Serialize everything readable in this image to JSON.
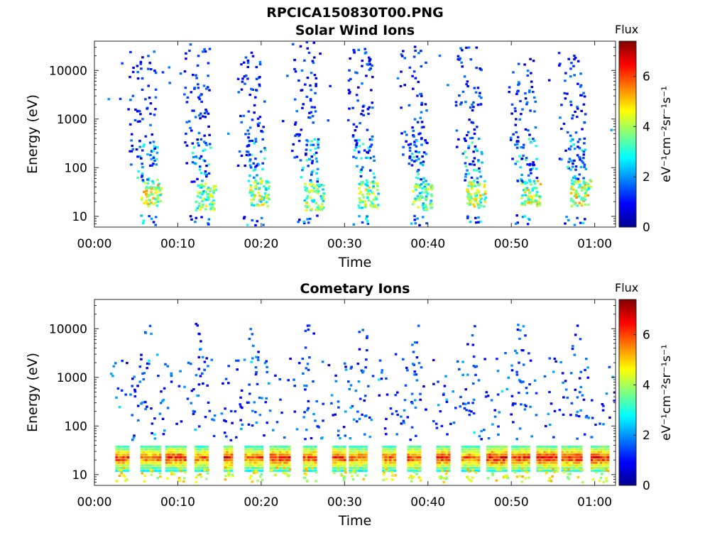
{
  "figure": {
    "title": "RPCICA150830T00.PNG"
  },
  "colors": {
    "colormap": [
      "#00008f",
      "#0000ff",
      "#0080ff",
      "#00ffff",
      "#80ff80",
      "#ffff00",
      "#ff8000",
      "#ff0000",
      "#800000"
    ]
  },
  "chart_data": [
    {
      "type": "heatmap",
      "title": "Solar Wind Ions",
      "xlabel": "Time",
      "ylabel": "Energy (eV)",
      "x_ticks": [
        "00:00",
        "00:10",
        "00:20",
        "00:30",
        "00:40",
        "00:50",
        "01:00"
      ],
      "x_range_minutes": [
        0,
        62.5
      ],
      "y_scale": "log",
      "y_ticks": [
        "10",
        "100",
        "1000",
        "10000"
      ],
      "y_range_eV": [
        6,
        40000
      ],
      "colorbar": {
        "label": "Flux",
        "units": "eV⁻¹cm⁻²sr⁻¹s⁻¹",
        "ticks": [
          "0",
          "2",
          "4",
          "6"
        ],
        "range": [
          0,
          7.4
        ]
      },
      "bursts": [
        {
          "t": 6.0,
          "core_eV": 30,
          "peak_flux": 5.5,
          "high_eV": 30000
        },
        {
          "t": 12.5,
          "core_eV": 25,
          "peak_flux": 4.8,
          "high_eV": 35000
        },
        {
          "t": 19.0,
          "core_eV": 30,
          "peak_flux": 5.2,
          "high_eV": 25000
        },
        {
          "t": 25.5,
          "core_eV": 25,
          "peak_flux": 5.0,
          "high_eV": 40000
        },
        {
          "t": 32.0,
          "core_eV": 28,
          "peak_flux": 4.9,
          "high_eV": 30000
        },
        {
          "t": 38.5,
          "core_eV": 25,
          "peak_flux": 4.7,
          "high_eV": 35000
        },
        {
          "t": 45.0,
          "core_eV": 28,
          "peak_flux": 5.3,
          "high_eV": 30000
        },
        {
          "t": 51.5,
          "core_eV": 30,
          "peak_flux": 5.4,
          "high_eV": 25000
        },
        {
          "t": 57.5,
          "core_eV": 30,
          "peak_flux": 5.6,
          "high_eV": 30000
        }
      ]
    },
    {
      "type": "heatmap",
      "title": "Cometary Ions",
      "xlabel": "Time",
      "ylabel": "Energy (eV)",
      "x_ticks": [
        "00:00",
        "00:10",
        "00:20",
        "00:30",
        "00:40",
        "00:50",
        "01:00"
      ],
      "x_range_minutes": [
        0,
        62.5
      ],
      "y_scale": "log",
      "y_ticks": [
        "10",
        "100",
        "1000",
        "10000"
      ],
      "y_range_eV": [
        6,
        40000
      ],
      "colorbar": {
        "label": "Flux",
        "units": "eV⁻¹cm⁻²sr⁻¹s⁻¹",
        "ticks": [
          "0",
          "2",
          "4",
          "6"
        ],
        "range": [
          0,
          7.4
        ]
      },
      "bands": [
        {
          "t_start": 2.5,
          "t_end": 4.0,
          "peak_flux": 6.8
        },
        {
          "t_start": 5.5,
          "t_end": 8.0,
          "peak_flux": 6.5
        },
        {
          "t_start": 8.5,
          "t_end": 11.0,
          "peak_flux": 7.0
        },
        {
          "t_start": 12.0,
          "t_end": 13.5,
          "peak_flux": 6.5
        },
        {
          "t_start": 15.5,
          "t_end": 16.5,
          "peak_flux": 7.2
        },
        {
          "t_start": 18.0,
          "t_end": 20.0,
          "peak_flux": 6.6
        },
        {
          "t_start": 21.0,
          "t_end": 23.5,
          "peak_flux": 7.0
        },
        {
          "t_start": 25.0,
          "t_end": 26.5,
          "peak_flux": 6.8
        },
        {
          "t_start": 28.5,
          "t_end": 30.0,
          "peak_flux": 7.0
        },
        {
          "t_start": 30.5,
          "t_end": 32.5,
          "peak_flux": 6.5
        },
        {
          "t_start": 34.5,
          "t_end": 36.0,
          "peak_flux": 6.6
        },
        {
          "t_start": 37.5,
          "t_end": 39.0,
          "peak_flux": 7.0
        },
        {
          "t_start": 41.0,
          "t_end": 42.5,
          "peak_flux": 7.0
        },
        {
          "t_start": 44.0,
          "t_end": 46.0,
          "peak_flux": 6.5
        },
        {
          "t_start": 47.0,
          "t_end": 49.5,
          "peak_flux": 7.2
        },
        {
          "t_start": 50.0,
          "t_end": 52.0,
          "peak_flux": 7.0
        },
        {
          "t_start": 53.0,
          "t_end": 55.5,
          "peak_flux": 7.2
        },
        {
          "t_start": 56.0,
          "t_end": 58.5,
          "peak_flux": 7.0
        },
        {
          "t_start": 59.5,
          "t_end": 61.5,
          "peak_flux": 7.1
        }
      ]
    }
  ]
}
